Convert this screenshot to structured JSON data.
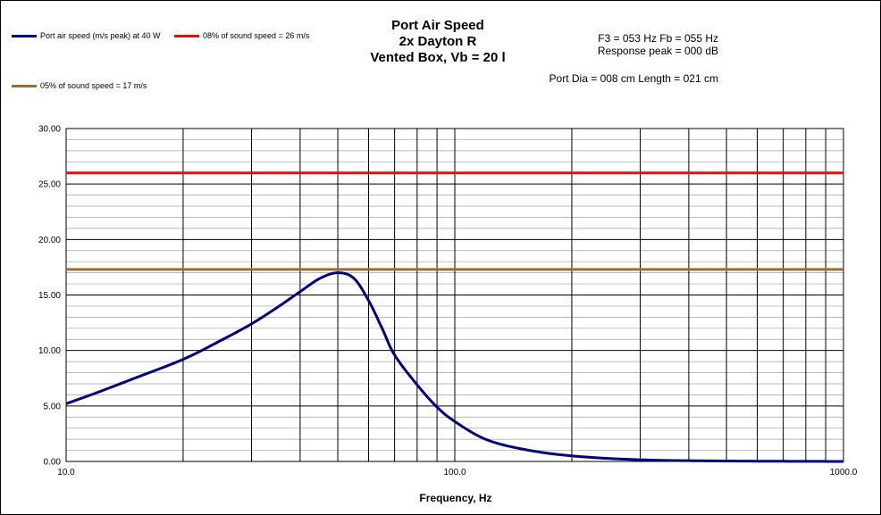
{
  "chart_data": {
    "type": "line",
    "title_lines": [
      "Port Air  Speed",
      "2x Dayton R",
      "Vented Box, Vb = 20 l"
    ],
    "xlabel": "Frequency, Hz",
    "ylabel": "",
    "x_scale": "log",
    "xlim": [
      10,
      1000
    ],
    "ylim": [
      0,
      30
    ],
    "x_tick_labels": [
      "10.0",
      "100.0",
      "1000.0"
    ],
    "y_tick_labels": [
      "0.00",
      "5.00",
      "10.00",
      "15.00",
      "20.00",
      "25.00",
      "30.00"
    ],
    "grid": true,
    "legend_position": "top-left",
    "annotations": {
      "f3_fb": "F3 = 053 Hz  Fb = 055 Hz",
      "response_peak": "Response  peak = 000 dB",
      "port": "Port Dia = 008  cm  Length  = 021 cm"
    },
    "series": [
      {
        "name": "Port air speed (m/s peak) at 40 W",
        "color": "#000080",
        "x": [
          10,
          12,
          15,
          20,
          25,
          30,
          35,
          40,
          45,
          50,
          55,
          60,
          65,
          70,
          80,
          90,
          100,
          120,
          150,
          200,
          300,
          500,
          1000
        ],
        "y": [
          5.2,
          6.2,
          7.5,
          9.2,
          10.9,
          12.4,
          13.9,
          15.3,
          16.5,
          17.0,
          16.5,
          14.5,
          12.0,
          9.6,
          6.9,
          4.9,
          3.6,
          2.0,
          1.1,
          0.5,
          0.15,
          0.04,
          0.0
        ]
      },
      {
        "name": "08% of sound speed = 26 m/s",
        "color": "#e01010",
        "x": [
          10,
          1000
        ],
        "y": [
          26,
          26
        ]
      },
      {
        "name": "05% of sound speed = 17 m/s",
        "color": "#9b6b2f",
        "x": [
          10,
          1000
        ],
        "y": [
          17.3,
          17.3
        ]
      }
    ]
  }
}
